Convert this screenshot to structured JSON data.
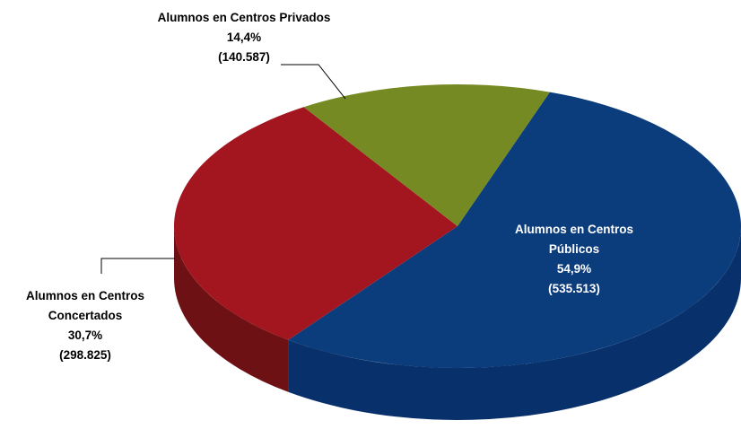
{
  "chart_data": {
    "type": "pie3d",
    "categories": [
      "Alumnos en Centros Públicos",
      "Alumnos en Centros Concertados",
      "Alumnos en Centros Privados"
    ],
    "values": [
      54.9,
      30.7,
      14.4
    ],
    "value_labels": [
      "54,9%",
      "30,7%",
      "14,4%"
    ],
    "count_labels": [
      "(535.513)",
      "(298.825)",
      "(140.587)"
    ],
    "colors": [
      "#0b3c7c",
      "#a3161f",
      "#768a24"
    ],
    "side_colors": [
      "#08306a",
      "#6e1115",
      "#56661a"
    ]
  }
}
